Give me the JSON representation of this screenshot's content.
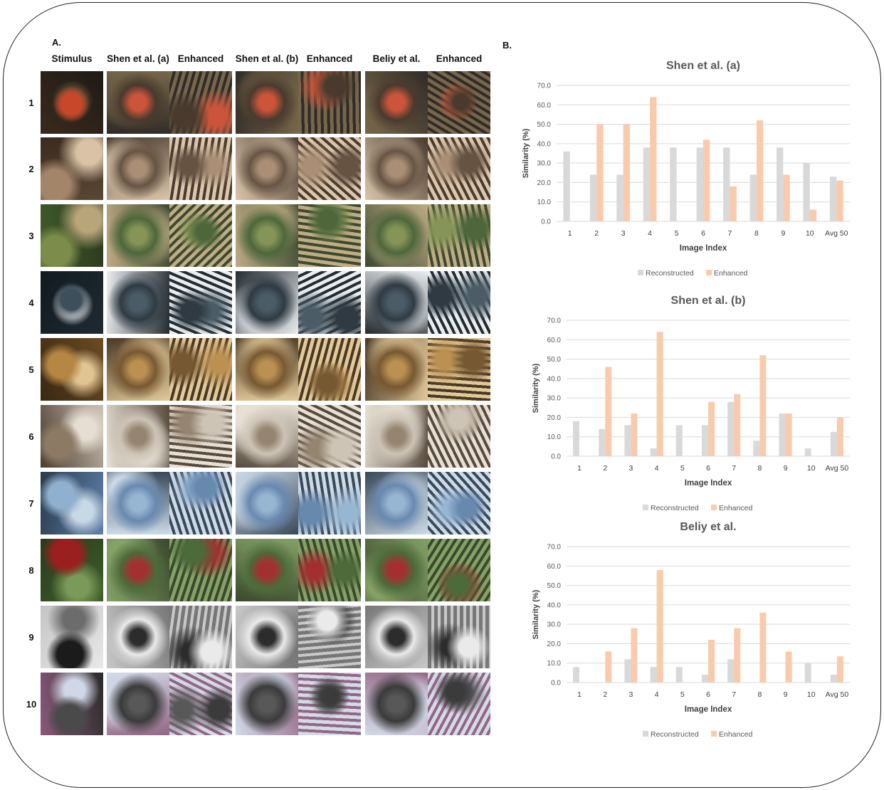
{
  "panel_a": {
    "label": "A.",
    "columns": [
      "Stimulus",
      "Shen et al. (a)",
      "Enhanced",
      "Shen et al. (b)",
      "Enhanced",
      "Beliy et al.",
      "Enhanced"
    ],
    "rows": [
      "1",
      "2",
      "3",
      "4",
      "5",
      "6",
      "7",
      "8",
      "9",
      "10"
    ]
  },
  "panel_b": {
    "label": "B."
  },
  "colors": {
    "reconstructed": "#d9d9d9",
    "enhanced": "#f8cbad",
    "title": "#595959",
    "grid": "#d9d9d9"
  },
  "chart_data": [
    {
      "type": "bar",
      "title": "Shen et al. (a)",
      "xlabel": "Image Index",
      "ylabel": "Similarity (%)",
      "ylim": [
        0,
        70
      ],
      "yticks": [
        "0.0",
        "10.0",
        "20.0",
        "30.0",
        "40.0",
        "50.0",
        "60.0",
        "70.0"
      ],
      "categories": [
        "1",
        "2",
        "3",
        "4",
        "5",
        "6",
        "7",
        "8",
        "9",
        "10",
        "Avg 50"
      ],
      "series": [
        {
          "name": "Reconstructed",
          "values": [
            36,
            24,
            24,
            38,
            38,
            38,
            38,
            24,
            38,
            30,
            23
          ]
        },
        {
          "name": "Enhanced",
          "values": [
            0,
            50,
            50,
            64,
            0,
            42,
            18,
            52,
            24,
            6,
            21
          ]
        }
      ],
      "legend": "bottom"
    },
    {
      "type": "bar",
      "title": "Shen et al. (b)",
      "xlabel": "Image Index",
      "ylabel": "Similarity (%)",
      "ylim": [
        0,
        70
      ],
      "yticks": [
        "0.0",
        "10.0",
        "20.0",
        "30.0",
        "40.0",
        "50.0",
        "60.0",
        "70.0"
      ],
      "categories": [
        "1",
        "2",
        "3",
        "4",
        "5",
        "6",
        "7",
        "8",
        "9",
        "10",
        "Avg 50"
      ],
      "series": [
        {
          "name": "Reconstructed",
          "values": [
            18,
            14,
            16,
            4,
            16,
            16,
            28,
            8,
            22,
            4,
            12.5
          ]
        },
        {
          "name": "Enhanced",
          "values": [
            0,
            46,
            22,
            64,
            0,
            28,
            32,
            52,
            22,
            0,
            20
          ]
        }
      ],
      "legend": "bottom"
    },
    {
      "type": "bar",
      "title": "Beliy et al.",
      "xlabel": "Image Index",
      "ylabel": "Similarity (%)",
      "ylim": [
        0,
        70
      ],
      "yticks": [
        "0.0",
        "10.0",
        "20.0",
        "30.0",
        "40.0",
        "50.0",
        "60.0",
        "70.0"
      ],
      "categories": [
        "1",
        "2",
        "3",
        "4",
        "5",
        "6",
        "7",
        "8",
        "9",
        "10",
        "Avg 50"
      ],
      "series": [
        {
          "name": "Reconstructed",
          "values": [
            8,
            0,
            12,
            8,
            8,
            4,
            12,
            0,
            0,
            10,
            4
          ]
        },
        {
          "name": "Enhanced",
          "values": [
            0,
            16,
            28,
            58,
            0,
            22,
            28,
            36,
            16,
            0,
            13.5
          ]
        }
      ],
      "legend": "bottom"
    }
  ]
}
